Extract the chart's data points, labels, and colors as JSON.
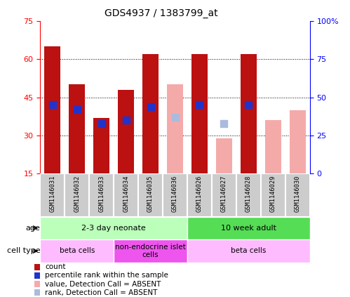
{
  "title": "GDS4937 / 1383799_at",
  "samples": [
    "GSM1146031",
    "GSM1146032",
    "GSM1146033",
    "GSM1146034",
    "GSM1146035",
    "GSM1146036",
    "GSM1146026",
    "GSM1146027",
    "GSM1146028",
    "GSM1146029",
    "GSM1146030"
  ],
  "bar_values": [
    65,
    50,
    37,
    48,
    62,
    50,
    62,
    29,
    62,
    36,
    40
  ],
  "rank_values": [
    45,
    42,
    33,
    35,
    44,
    37,
    45,
    33,
    45,
    null,
    null
  ],
  "absent": [
    false,
    false,
    false,
    false,
    false,
    true,
    false,
    true,
    false,
    true,
    true
  ],
  "bar_color_present": "#bb1111",
  "bar_color_absent": "#f5aaaa",
  "rank_color_present": "#2233cc",
  "rank_color_absent": "#aabbdd",
  "ylim_left": [
    15,
    75
  ],
  "ylim_right": [
    0,
    100
  ],
  "left_ticks": [
    15,
    30,
    45,
    60,
    75
  ],
  "right_ticks": [
    0,
    25,
    50,
    75,
    100
  ],
  "right_tick_labels": [
    "0",
    "25",
    "50",
    "75",
    "100%"
  ],
  "age_groups": [
    {
      "label": "2-3 day neonate",
      "start": 0,
      "end": 6,
      "color": "#bbffbb"
    },
    {
      "label": "10 week adult",
      "start": 6,
      "end": 11,
      "color": "#55dd55"
    }
  ],
  "cell_type_groups": [
    {
      "label": "beta cells",
      "start": 0,
      "end": 3,
      "color": "#ffbbff"
    },
    {
      "label": "non-endocrine islet\ncells",
      "start": 3,
      "end": 6,
      "color": "#ee55ee"
    },
    {
      "label": "beta cells",
      "start": 6,
      "end": 11,
      "color": "#ffbbff"
    }
  ],
  "age_label": "age",
  "cell_type_label": "cell type",
  "legend_items": [
    {
      "color": "#bb1111",
      "label": "count"
    },
    {
      "color": "#2233cc",
      "label": "percentile rank within the sample"
    },
    {
      "color": "#f5aaaa",
      "label": "value, Detection Call = ABSENT"
    },
    {
      "color": "#aabbdd",
      "label": "rank, Detection Call = ABSENT"
    }
  ],
  "bar_width": 0.65,
  "rank_dot_size": 55,
  "sample_bg_color": "#cccccc",
  "sample_border_color": "white",
  "grid_color": "black",
  "grid_style": ":"
}
